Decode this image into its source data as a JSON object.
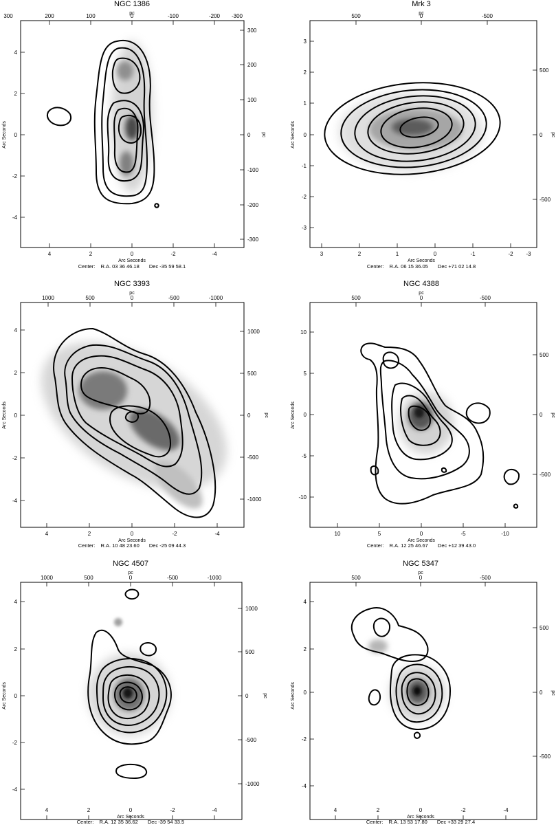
{
  "figure": {
    "panels": [
      {
        "id": "ngc1386",
        "title": "NGC 1386",
        "x_label": "Arc Seconds",
        "y_label": "Arc Seconds",
        "top_label": "pc",
        "right_label": "pc",
        "center": {
          "prefix": "Center:",
          "ra": "R.A. 03 36 46.18",
          "dec": "Dec  -35 59 58.1"
        },
        "x_ticks": [
          "4",
          "2",
          "0",
          "-2",
          "-4"
        ],
        "y_ticks": [
          "4",
          "2",
          "0",
          "-2",
          "-4"
        ],
        "top_ticks": [
          "300",
          "200",
          "100",
          "0",
          "-100",
          "-200",
          "-300"
        ],
        "right_ticks": [
          "300",
          "200",
          "100",
          "0",
          "-100",
          "-200",
          "-300"
        ]
      },
      {
        "id": "mrk3",
        "title": "Mrk 3",
        "x_label": "Arc Seconds",
        "y_label": "Arc Seconds",
        "top_label": "pc",
        "right_label": "pc",
        "center": {
          "prefix": "Center:",
          "ra": "R.A. 06 15 36.05",
          "dec": "Dec  +71 02 14.8"
        },
        "x_ticks": [
          "3",
          "2",
          "1",
          "0",
          "-1",
          "-2",
          "-3"
        ],
        "y_ticks": [
          "3",
          "2",
          "1",
          "0",
          "-1",
          "-2",
          "-3"
        ],
        "top_ticks": [
          "500",
          "0",
          "-500"
        ],
        "right_ticks": [
          "500",
          "0",
          "-500"
        ]
      },
      {
        "id": "ngc3393",
        "title": "NGC 3393",
        "x_label": "Arc Seconds",
        "y_label": "Arc Seconds",
        "top_label": "pc",
        "right_label": "pc",
        "center": {
          "prefix": "Center:",
          "ra": "R.A. 10 48 23.60",
          "dec": "Dec  -25 09 44.3"
        },
        "x_ticks": [
          "4",
          "2",
          "0",
          "-2",
          "-4"
        ],
        "y_ticks": [
          "4",
          "2",
          "0",
          "-2",
          "-4"
        ],
        "top_ticks": [
          "1000",
          "500",
          "0",
          "-500",
          "-1000"
        ],
        "right_ticks": [
          "1000",
          "500",
          "0",
          "-500",
          "-1000"
        ]
      },
      {
        "id": "ngc4388",
        "title": "NGC 4388",
        "x_label": "Arc Seconds",
        "y_label": "Arc Seconds",
        "top_label": "pc",
        "right_label": "pc",
        "center": {
          "prefix": "Center:",
          "ra": "R.A. 12 25 46.67",
          "dec": "Dec  +12 39 43.0"
        },
        "x_ticks": [
          "10",
          "5",
          "0",
          "-5",
          "-10"
        ],
        "y_ticks": [
          "10",
          "5",
          "0",
          "-5",
          "-10"
        ],
        "top_ticks": [
          "500",
          "0",
          "-500"
        ],
        "right_ticks": [
          "500",
          "0",
          "-500"
        ]
      },
      {
        "id": "ngc4507",
        "title": "NGC 4507",
        "x_label": "Arc Seconds",
        "y_label": "Arc Seconds",
        "top_label": "pc",
        "right_label": "pc",
        "center": {
          "prefix": "Center:",
          "ra": "R.A. 12 35 36.62",
          "dec": "Dec  -39 54 33.5"
        },
        "x_ticks": [
          "4",
          "2",
          "0",
          "-2",
          "-4"
        ],
        "y_ticks": [
          "4",
          "2",
          "0",
          "-2",
          "-4"
        ],
        "top_ticks": [
          "1000",
          "500",
          "0",
          "-500",
          "-1000"
        ],
        "right_ticks": [
          "1000",
          "500",
          "0",
          "-500",
          "-1000"
        ]
      },
      {
        "id": "ngc5347",
        "title": "NGC 5347",
        "x_label": "Arc Seconds",
        "y_label": "Arc Seconds",
        "top_label": "pc",
        "right_label": "pc",
        "center": {
          "prefix": "Center:",
          "ra": "R.A. 13 53 17.80",
          "dec": "Dec  +33 29 27.4"
        },
        "x_ticks": [
          "4",
          "2",
          "0",
          "-2",
          "-4"
        ],
        "y_ticks": [
          "4",
          "2",
          "0",
          "-2",
          "-4"
        ],
        "top_ticks": [
          "500",
          "0",
          "-500"
        ],
        "right_ticks": [
          "500",
          "0",
          "-500"
        ]
      }
    ]
  }
}
